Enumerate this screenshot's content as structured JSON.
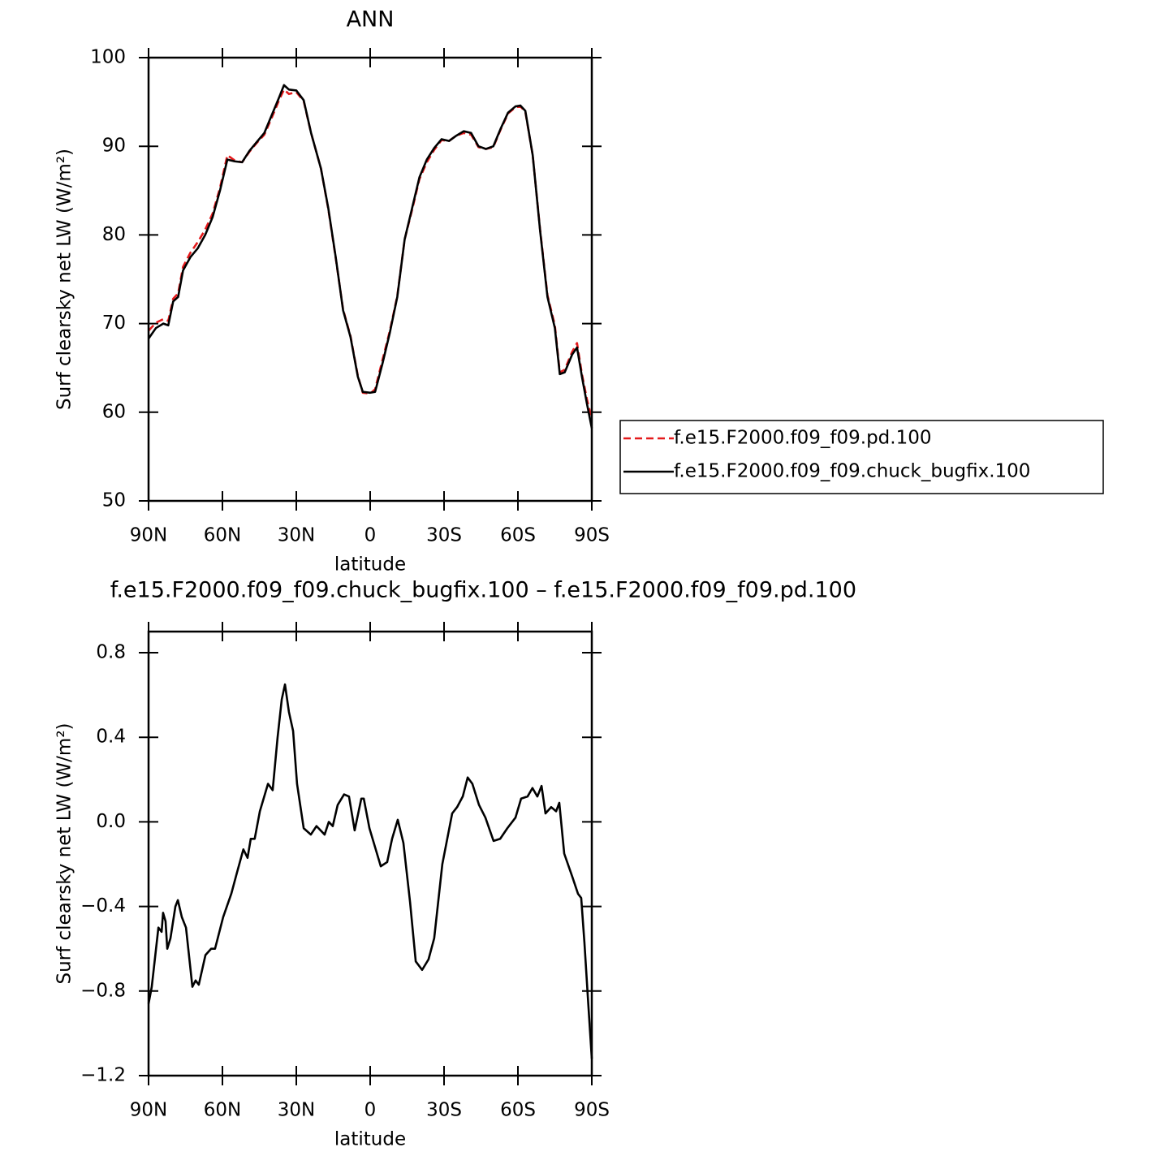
{
  "chart_data": [
    {
      "type": "line",
      "title": "ANN",
      "xlabel": "latitude",
      "ylabel": "Surf clearsky net LW (W/m²)",
      "xlim": [
        90,
        -90
      ],
      "ylim": [
        50,
        100
      ],
      "xticks": [
        {
          "value": 90,
          "label": "90N"
        },
        {
          "value": 60,
          "label": "60N"
        },
        {
          "value": 30,
          "label": "30N"
        },
        0,
        {
          "value": -30,
          "label": "30S"
        },
        {
          "value": -60,
          "label": "60S"
        },
        {
          "value": -90,
          "label": "90S"
        }
      ],
      "yticks": [
        50,
        60,
        70,
        80,
        90,
        100
      ],
      "legend": "right",
      "x": [
        90,
        87,
        84,
        82,
        80,
        78,
        76,
        73,
        70,
        67,
        64,
        61,
        58,
        55,
        52,
        49,
        46,
        43,
        40,
        37,
        35,
        33,
        30,
        27,
        24,
        20,
        17,
        14,
        11,
        8,
        5,
        3,
        0,
        -2,
        -5,
        -8,
        -11,
        -14,
        -17,
        -20,
        -23,
        -26,
        -29,
        -32,
        -35,
        -38,
        -41,
        -44,
        -47,
        -50,
        -53,
        -56,
        -59,
        -61,
        -63,
        -66,
        -69,
        -72,
        -75,
        -77,
        -79,
        -82,
        -84,
        -86,
        -88,
        -90
      ],
      "series": [
        {
          "name": "f.e15.F2000.f09_f09.pd.100",
          "color": "#e41a1c",
          "linestyle": "dashed",
          "values": [
            69.2,
            70.1,
            70.5,
            70.3,
            72.8,
            73.4,
            76.4,
            78,
            79.2,
            80.6,
            82.4,
            85.3,
            89,
            88.4,
            88.2,
            89.4,
            90.4,
            91.3,
            93.2,
            95.2,
            96.4,
            95.9,
            96.1,
            95.1,
            91.5,
            87.5,
            82.9,
            77.4,
            71.6,
            68.6,
            64.1,
            62.2,
            62.1,
            62.6,
            65.9,
            69.2,
            73.1,
            79.5,
            82.8,
            86.3,
            88.2,
            89.6,
            90.7,
            90.6,
            91.2,
            91.5,
            91.3,
            89.9,
            89.7,
            89.9,
            91.9,
            93.7,
            94.4,
            94.5,
            93.9,
            89,
            80.6,
            73.2,
            69.8,
            64.5,
            64.8,
            66.8,
            67.8,
            64.3,
            61.5,
            59.2
          ]
        },
        {
          "name": "f.e15.F2000.f09_f09.chuck_bugfix.100",
          "color": "#000000",
          "linestyle": "solid",
          "values": [
            68.3,
            69.5,
            70.0,
            69.8,
            72.5,
            73,
            76,
            77.5,
            78.5,
            80,
            82,
            85,
            88.5,
            88.3,
            88.2,
            89.5,
            90.5,
            91.5,
            93.5,
            95.5,
            96.9,
            96.4,
            96.3,
            95.2,
            91.5,
            87.5,
            83,
            77.5,
            71.5,
            68.5,
            64,
            62.3,
            62.2,
            62.3,
            65.5,
            69,
            73,
            79.5,
            83,
            86.5,
            88.5,
            89.8,
            90.8,
            90.6,
            91.2,
            91.7,
            91.5,
            90.0,
            89.7,
            90.0,
            92,
            93.8,
            94.5,
            94.6,
            94.0,
            89,
            80.5,
            73,
            69.5,
            64.3,
            64.5,
            66.5,
            67.3,
            64,
            61,
            58.2
          ]
        }
      ]
    },
    {
      "type": "line",
      "title": "f.e15.F2000.f09_f09.chuck_bugfix.100 – f.e15.F2000.f09_f09.pd.100",
      "xlabel": "latitude",
      "ylabel": "Surf clearsky net LW (W/m²)",
      "xlim": [
        90,
        -90
      ],
      "ylim": [
        -1.2,
        0.9
      ],
      "xticks": [
        {
          "value": 90,
          "label": "90N"
        },
        {
          "value": 60,
          "label": "60N"
        },
        {
          "value": 30,
          "label": "30N"
        },
        0,
        {
          "value": -30,
          "label": "30S"
        },
        {
          "value": -60,
          "label": "60S"
        },
        {
          "value": -90,
          "label": "90S"
        }
      ],
      "yticks": [
        {
          "value": -1.2,
          "label": "−1.2"
        },
        {
          "value": -0.8,
          "label": "−0.8"
        },
        {
          "value": -0.4,
          "label": "−0.4"
        },
        {
          "value": 0,
          "label": "0.0"
        },
        0.4,
        0.8
      ],
      "x": [
        90,
        88.7,
        86.0,
        84.7,
        84.1,
        83.1,
        82.4,
        81.1,
        79.1,
        78.1,
        76.5,
        74.8,
        72.2,
        70.9,
        69.6,
        66.9,
        64.6,
        63.0,
        59.7,
        56.4,
        54.1,
        51.5,
        49.8,
        48.5,
        46.9,
        44.8,
        41.5,
        39.6,
        37.6,
        35.9,
        34.6,
        33.0,
        31.3,
        29.7,
        27.0,
        24.1,
        21.8,
        18.5,
        16.8,
        15.2,
        13.2,
        10.6,
        8.6,
        6.3,
        3.6,
        2.6,
        0.3,
        -2.0,
        -4.3,
        -6.9,
        -8.9,
        -11.2,
        -13.5,
        -16.2,
        -18.5,
        -21.1,
        -23.7,
        -26.0,
        -29.3,
        -33.3,
        -35.3,
        -37.6,
        -39.6,
        -41.5,
        -44.2,
        -46.8,
        -50.1,
        -52.8,
        -55.7,
        -59.0,
        -61.3,
        -63.9,
        -65.9,
        -67.9,
        -69.6,
        -71.2,
        -73.5,
        -75.5,
        -76.8,
        -78.8,
        -82.1,
        -84.4,
        -85.7,
        -87.0,
        -88.4,
        -90
      ],
      "series": [
        {
          "color": "#000000",
          "linestyle": "solid",
          "values": [
            -0.86,
            -0.78,
            -0.5,
            -0.52,
            -0.43,
            -0.47,
            -0.6,
            -0.55,
            -0.4,
            -0.37,
            -0.45,
            -0.5,
            -0.78,
            -0.75,
            -0.77,
            -0.63,
            -0.6,
            -0.6,
            -0.45,
            -0.34,
            -0.24,
            -0.13,
            -0.17,
            -0.08,
            -0.08,
            0.05,
            0.18,
            0.15,
            0.4,
            0.58,
            0.65,
            0.52,
            0.43,
            0.18,
            -0.03,
            -0.06,
            -0.02,
            -0.06,
            0.0,
            -0.02,
            0.08,
            0.13,
            0.12,
            -0.04,
            0.11,
            0.11,
            -0.03,
            -0.12,
            -0.21,
            -0.19,
            -0.08,
            0.01,
            -0.1,
            -0.38,
            -0.66,
            -0.7,
            -0.65,
            -0.55,
            -0.2,
            0.04,
            0.07,
            0.12,
            0.21,
            0.18,
            0.08,
            0.02,
            -0.09,
            -0.08,
            -0.03,
            0.02,
            0.11,
            0.12,
            0.16,
            0.12,
            0.17,
            0.04,
            0.07,
            0.05,
            0.09,
            -0.15,
            -0.26,
            -0.34,
            -0.36,
            -0.57,
            -0.83,
            -1.12
          ]
        }
      ]
    }
  ]
}
